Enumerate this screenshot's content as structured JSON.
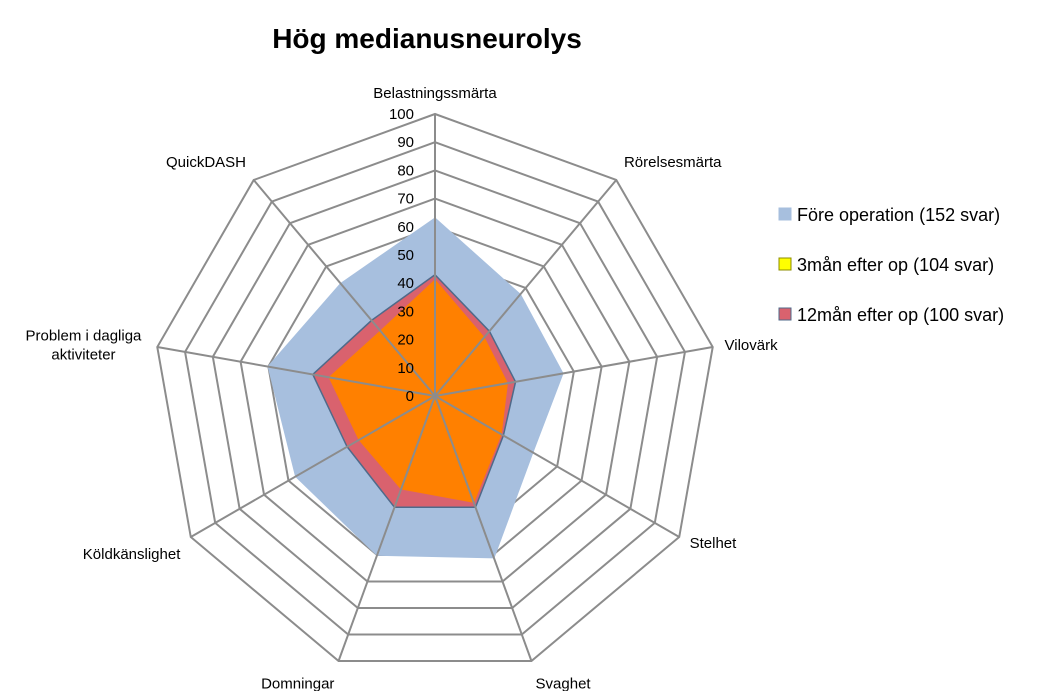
{
  "chart_data": {
    "type": "radar",
    "title": "Hög medianusneurolys",
    "categories": [
      "Belastningssmärta",
      "Rörelsesmärta",
      "Vilovärk",
      "Stelhet",
      "Svaghet",
      "Domningar",
      "Köldkänslighet",
      [
        "Problem i dagliga",
        "aktiviteter"
      ],
      "QuickDASH"
    ],
    "ticks": [
      "0",
      "10",
      "20",
      "30",
      "40",
      "50",
      "60",
      "70",
      "80",
      "90",
      "100"
    ],
    "rlim": [
      0,
      100
    ],
    "grid": true,
    "legend_position": "right",
    "series": [
      {
        "name": "Före operation (152 svar)",
        "values": [
          63,
          47,
          46,
          40,
          61,
          60,
          57,
          60,
          52
        ],
        "color": "#A7BFDE",
        "border": "#A7BFDE"
      },
      {
        "name": "12mån efter op (100 svar)",
        "values": [
          43,
          30,
          29,
          28,
          42,
          42,
          36,
          44,
          35
        ],
        "color": "#D9626E",
        "border": "#4F6A8A"
      },
      {
        "name": "3mån efter op (104 svar)",
        "values": [
          41,
          27,
          26,
          27,
          40,
          35,
          31,
          38,
          30
        ],
        "color": "#FF8000",
        "border": "#FF8000",
        "legend_color": "#FFFF00",
        "legend_border": "#8C8C00"
      }
    ],
    "legend_order": [
      0,
      2,
      1
    ]
  }
}
